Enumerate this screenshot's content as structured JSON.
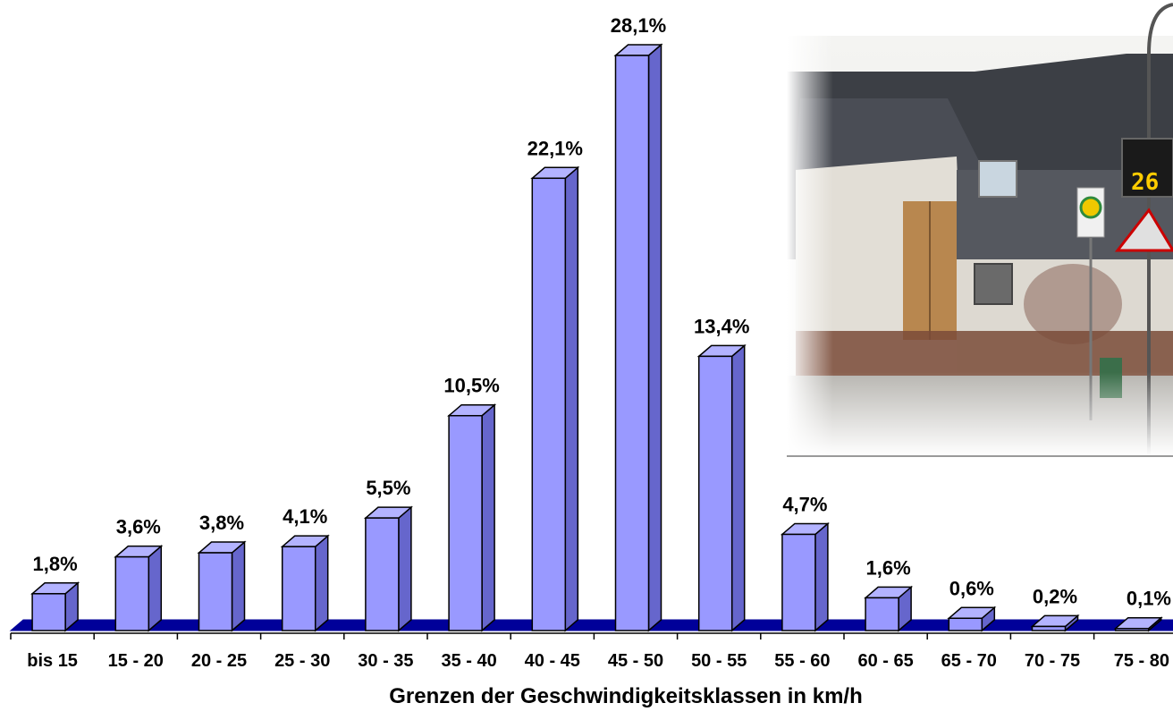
{
  "chart_data": {
    "type": "bar",
    "title": "",
    "xlabel": "Grenzen der Geschwindigkeitsklassen in km/h",
    "ylabel": "",
    "ylim": [
      0,
      28.1
    ],
    "grid": false,
    "legend": "none",
    "categories": [
      "bis 15",
      "15 - 20",
      "20 - 25",
      "25 - 30",
      "30 - 35",
      "35 - 40",
      "40 - 45",
      "45 - 50",
      "50 - 55",
      "55 - 60",
      "60 - 65",
      "65 - 70",
      "70 - 75",
      "75 - 80"
    ],
    "values": [
      1.8,
      3.6,
      3.8,
      4.1,
      5.5,
      10.5,
      22.1,
      28.1,
      13.4,
      4.7,
      1.6,
      0.6,
      0.2,
      0.1
    ],
    "data_labels": [
      "1,8%",
      "3,6%",
      "3,8%",
      "4,1%",
      "5,5%",
      "10,5%",
      "22,1%",
      "28,1%",
      "13,4%",
      "4,7%",
      "1,6%",
      "0,6%",
      "0,2%",
      "0,1%"
    ],
    "style": {
      "bar_front": "#9999ff",
      "bar_side": "#6666cc",
      "bar_top": "#b3b3ff",
      "bar_stroke": "#000000",
      "floor": "#000099"
    }
  }
}
